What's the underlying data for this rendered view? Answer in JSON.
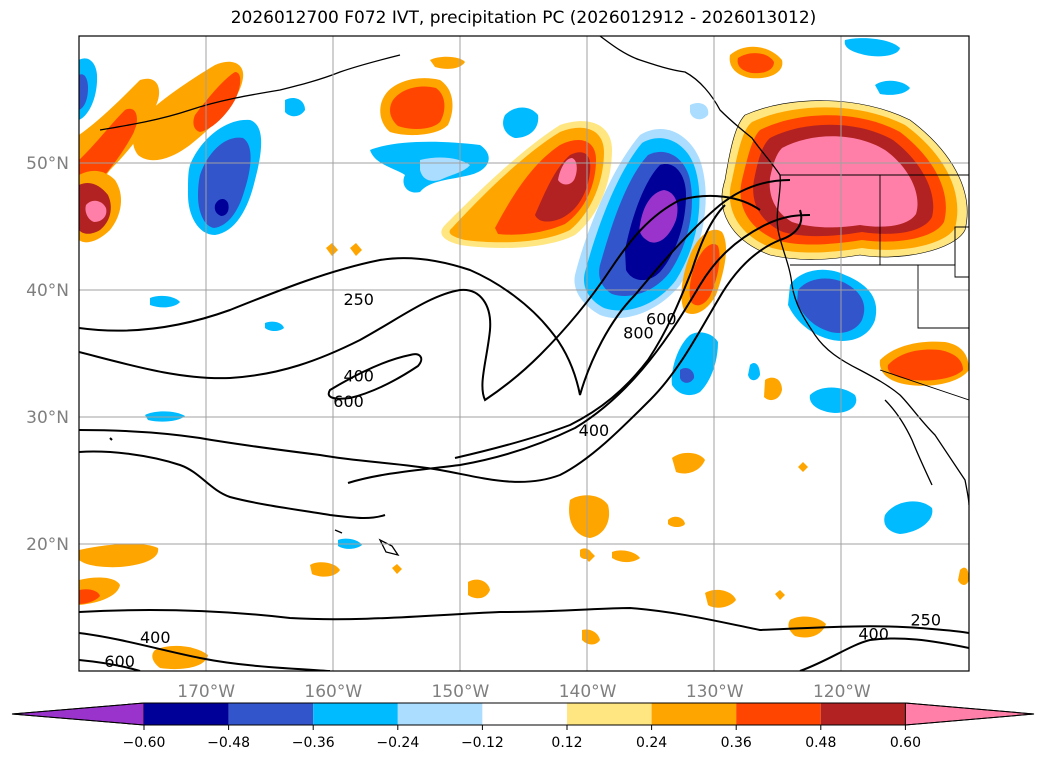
{
  "chart_data": {
    "type": "contour-map",
    "title": "2026012700 F072 IVT, precipitation PC (2026012912 - 2026013012)",
    "map_extent": {
      "lon_min": -180,
      "lon_max": -110,
      "lat_min": 10,
      "lat_max": 60
    },
    "lat_ticks": [
      {
        "value": 50,
        "label": "50°N"
      },
      {
        "value": 40,
        "label": "40°N"
      },
      {
        "value": 30,
        "label": "30°N"
      },
      {
        "value": 20,
        "label": "20°N"
      }
    ],
    "lon_ticks": [
      {
        "value": -170,
        "label": "170°W"
      },
      {
        "value": -160,
        "label": "160°W"
      },
      {
        "value": -150,
        "label": "150°W"
      },
      {
        "value": -140,
        "label": "140°W"
      },
      {
        "value": -130,
        "label": "130°W"
      },
      {
        "value": -120,
        "label": "120°W"
      }
    ],
    "colorbar": {
      "levels": [
        -0.6,
        -0.48,
        -0.36,
        -0.24,
        -0.12,
        0.12,
        0.24,
        0.36,
        0.48,
        0.6
      ],
      "tick_labels": [
        "−0.60",
        "−0.48",
        "−0.36",
        "−0.24",
        "−0.12",
        "0.12",
        "0.24",
        "0.36",
        "0.48",
        "0.60"
      ],
      "colors": [
        "#9933cc",
        "#000099",
        "#3355cc",
        "#00bbff",
        "#aaddff",
        "#ffffff",
        "#ffe680",
        "#ffa500",
        "#ff4500",
        "#b22222",
        "#ff7fa8"
      ],
      "extend": "both"
    },
    "ivt_contour_labels": [
      {
        "text": "250",
        "lon": -158,
        "lat": 38.8
      },
      {
        "text": "400",
        "lon": -158,
        "lat": 32.8
      },
      {
        "text": "600",
        "lon": -158.8,
        "lat": 30.8
      },
      {
        "text": "800",
        "lon": -136,
        "lat": 36.2
      },
      {
        "text": "600",
        "lon": -134.2,
        "lat": 37.3
      },
      {
        "text": "400",
        "lon": -139.5,
        "lat": 28.5
      },
      {
        "text": "250",
        "lon": -113.4,
        "lat": 13.6
      },
      {
        "text": "400",
        "lon": -117.5,
        "lat": 12.5
      },
      {
        "text": "400",
        "lon": -174,
        "lat": 12.2
      },
      {
        "text": "600",
        "lon": -176.8,
        "lat": 10.3
      }
    ]
  }
}
